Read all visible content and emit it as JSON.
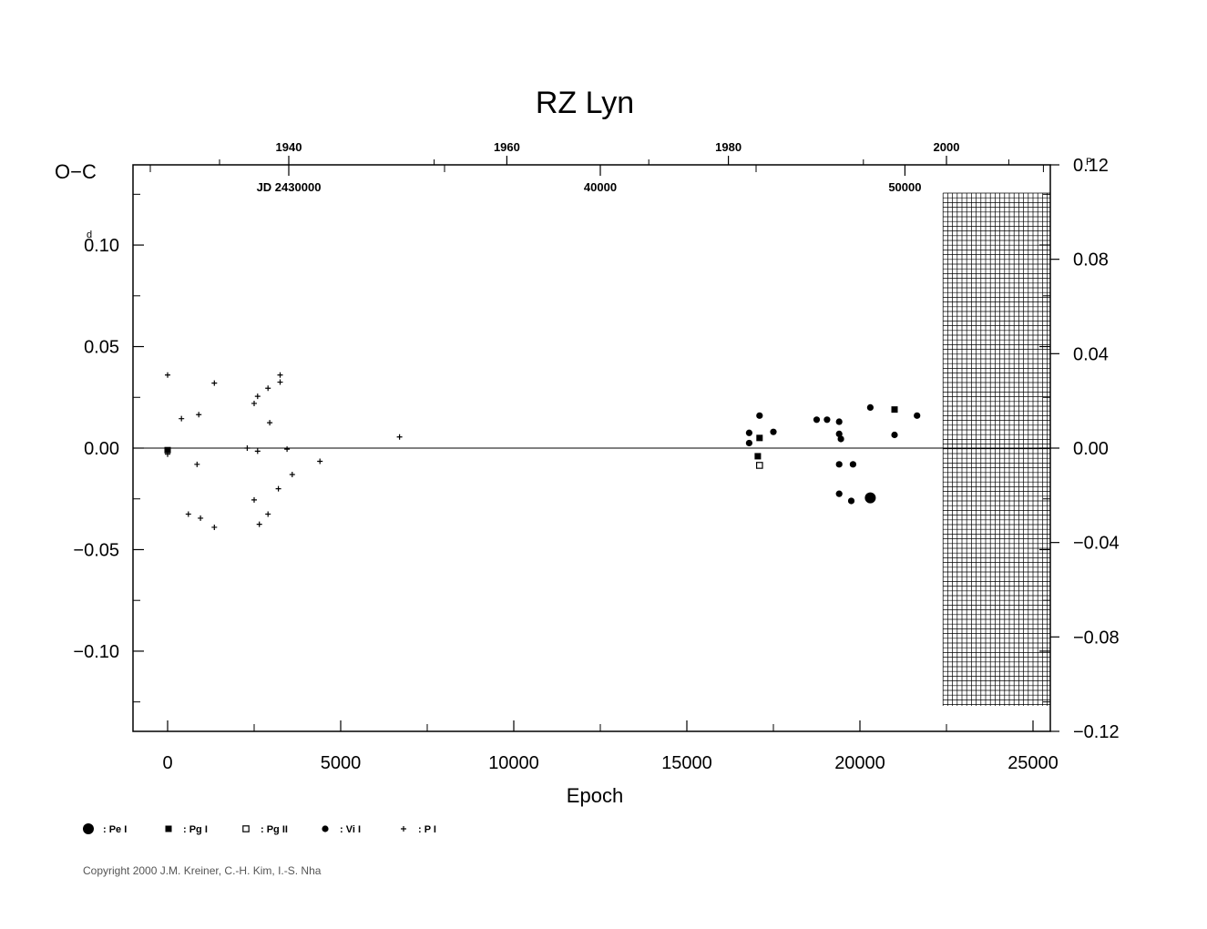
{
  "chart_data": {
    "type": "scatter",
    "title": "RZ  Lyn",
    "xlabel": "Epoch",
    "ylabel": "O−C",
    "left_unit_mark": "d",
    "right_unit_mark": "P",
    "xlim": [
      -1000,
      25500
    ],
    "ylim": [
      -0.1395,
      0.1395
    ],
    "right_ylim": [
      -0.12,
      0.12
    ],
    "x_ticks": [
      {
        "value": 0,
        "label": "0"
      },
      {
        "value": 5000,
        "label": "5000"
      },
      {
        "value": 10000,
        "label": "10000"
      },
      {
        "value": 15000,
        "label": "15000"
      },
      {
        "value": 20000,
        "label": "20000"
      },
      {
        "value": 25000,
        "label": "25000"
      }
    ],
    "y_ticks": [
      {
        "value": 0.1,
        "label": "0.10"
      },
      {
        "value": 0.05,
        "label": "0.05"
      },
      {
        "value": 0.0,
        "label": "0.00"
      },
      {
        "value": -0.05,
        "label": "−0.05"
      },
      {
        "value": -0.1,
        "label": "−0.10"
      }
    ],
    "right_y_ticks": [
      {
        "value": 0.12,
        "label": "0.12"
      },
      {
        "value": 0.08,
        "label": "0.08"
      },
      {
        "value": 0.04,
        "label": "0.04"
      },
      {
        "value": 0.0,
        "label": "0.00"
      },
      {
        "value": -0.04,
        "label": "−0.04"
      },
      {
        "value": -0.08,
        "label": "−0.08"
      },
      {
        "value": -0.12,
        "label": "−0.12"
      }
    ],
    "top_year_ticks": [
      {
        "epoch": 3500,
        "label": "1940"
      },
      {
        "epoch": 9800,
        "label": "1960"
      },
      {
        "epoch": 16200,
        "label": "1980"
      },
      {
        "epoch": 22500,
        "label": "2000"
      }
    ],
    "top_jd_ticks": [
      {
        "epoch": 3500,
        "label": "JD  2430000"
      },
      {
        "epoch": 12500,
        "label": "40000"
      },
      {
        "epoch": 21300,
        "label": "50000"
      }
    ],
    "unobserved_region_start_epoch": 22400,
    "legend_position": "bottom-left",
    "series": [
      {
        "name": ": Pe I",
        "marker": "big-dot",
        "points": [
          [
            20300,
            -0.0245
          ]
        ]
      },
      {
        "name": ": Pg I",
        "marker": "filled-square",
        "points": [
          [
            17100,
            0.005
          ],
          [
            17050,
            -0.004
          ],
          [
            21000,
            0.019
          ],
          [
            0,
            -0.001
          ]
        ]
      },
      {
        "name": ": Pg II",
        "marker": "open-square",
        "points": [
          [
            17100,
            -0.0085
          ]
        ]
      },
      {
        "name": ": Vi I",
        "marker": "dot",
        "points": [
          [
            16800,
            0.0075
          ],
          [
            16800,
            0.0025
          ],
          [
            17100,
            0.016
          ],
          [
            17500,
            0.008
          ],
          [
            18750,
            0.014
          ],
          [
            19050,
            0.014
          ],
          [
            19400,
            0.013
          ],
          [
            19400,
            0.007
          ],
          [
            19450,
            0.0045
          ],
          [
            19400,
            -0.008
          ],
          [
            19800,
            -0.008
          ],
          [
            19400,
            -0.0225
          ],
          [
            19750,
            -0.026
          ],
          [
            20300,
            0.02
          ],
          [
            21000,
            0.0065
          ],
          [
            21650,
            0.016
          ]
        ]
      },
      {
        "name": ": P I",
        "marker": "plus",
        "points": [
          [
            0,
            0.036
          ],
          [
            0,
            -0.003
          ],
          [
            400,
            0.0145
          ],
          [
            900,
            0.0165
          ],
          [
            850,
            -0.008
          ],
          [
            600,
            -0.0325
          ],
          [
            950,
            -0.0345
          ],
          [
            1350,
            0.032
          ],
          [
            1350,
            -0.039
          ],
          [
            2300,
            0.0
          ],
          [
            2500,
            0.022
          ],
          [
            2600,
            0.0255
          ],
          [
            2900,
            0.0295
          ],
          [
            2950,
            0.0125
          ],
          [
            2600,
            -0.0015
          ],
          [
            2500,
            -0.0255
          ],
          [
            2650,
            -0.0375
          ],
          [
            2900,
            -0.0325
          ],
          [
            3250,
            0.036
          ],
          [
            3250,
            0.0325
          ],
          [
            3200,
            -0.02
          ],
          [
            3450,
            -0.0005
          ],
          [
            3600,
            -0.013
          ],
          [
            4400,
            -0.0065
          ],
          [
            6700,
            0.0055
          ]
        ]
      }
    ]
  },
  "copyright": "Copyright 2000 J.M. Kreiner, C.-H. Kim, I.-S. Nha"
}
